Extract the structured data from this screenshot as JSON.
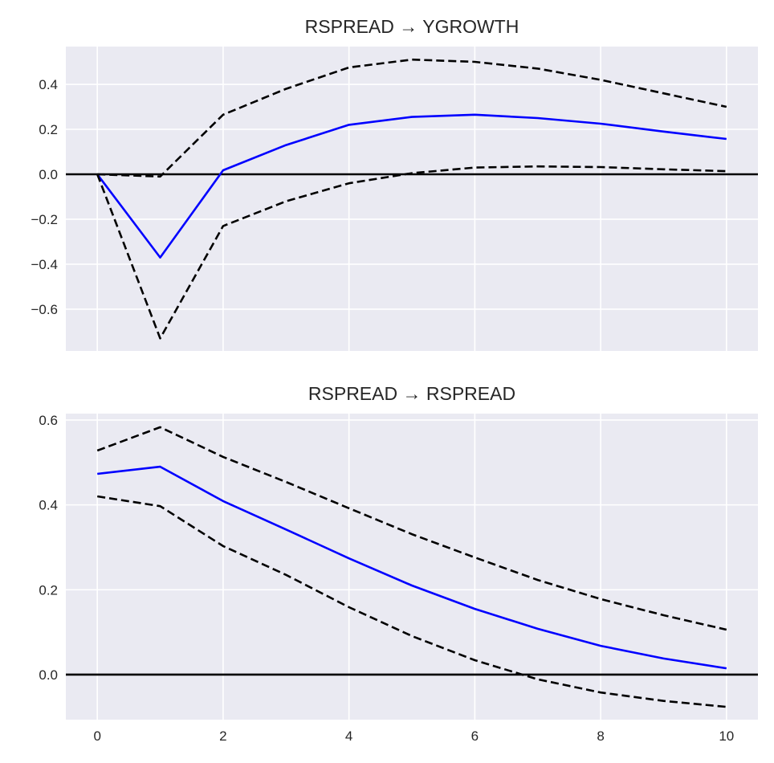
{
  "chart_data": [
    {
      "type": "line",
      "title": "RSPREAD → YGROWTH",
      "xlabel": "",
      "ylabel": "",
      "x": [
        0,
        1,
        2,
        3,
        4,
        5,
        6,
        7,
        8,
        9,
        10
      ],
      "xlim": [
        -0.5,
        10.5
      ],
      "ylim": [
        -0.786,
        0.568
      ],
      "xticks": [
        0,
        2,
        4,
        6,
        8,
        10
      ],
      "xtick_labels_visible": false,
      "yticks": [
        -0.6,
        -0.4,
        -0.2,
        0.0,
        0.2,
        0.4
      ],
      "ytick_labels": [
        "−0.6",
        "−0.4",
        "−0.2",
        "0.0",
        "0.2",
        "0.4"
      ],
      "grid": true,
      "hline": 0,
      "series": [
        {
          "name": "irf",
          "style": "solid",
          "color": "#0000ff",
          "values": [
            0.0,
            -0.37,
            0.018,
            0.13,
            0.22,
            0.255,
            0.265,
            0.25,
            0.225,
            0.19,
            0.157
          ]
        },
        {
          "name": "upper",
          "style": "dashed",
          "color": "#000000",
          "values": [
            0.0,
            -0.01,
            0.265,
            0.38,
            0.475,
            0.51,
            0.5,
            0.47,
            0.42,
            0.36,
            0.3
          ]
        },
        {
          "name": "lower",
          "style": "dashed",
          "color": "#000000",
          "values": [
            0.0,
            -0.73,
            -0.23,
            -0.12,
            -0.04,
            0.005,
            0.03,
            0.035,
            0.032,
            0.022,
            0.014
          ]
        }
      ]
    },
    {
      "type": "line",
      "title": "RSPREAD → RSPREAD",
      "xlabel": "",
      "ylabel": "",
      "x": [
        0,
        1,
        2,
        3,
        4,
        5,
        6,
        7,
        8,
        9,
        10
      ],
      "xlim": [
        -0.5,
        10.5
      ],
      "ylim": [
        -0.106,
        0.615
      ],
      "xticks": [
        0,
        2,
        4,
        6,
        8,
        10
      ],
      "xtick_labels": [
        "0",
        "2",
        "4",
        "6",
        "8",
        "10"
      ],
      "xtick_labels_visible": true,
      "yticks": [
        0.0,
        0.2,
        0.4,
        0.6
      ],
      "ytick_labels": [
        "0.0",
        "0.2",
        "0.4",
        "0.6"
      ],
      "grid": true,
      "hline": 0,
      "series": [
        {
          "name": "irf",
          "style": "solid",
          "color": "#0000ff",
          "values": [
            0.473,
            0.49,
            0.409,
            0.342,
            0.274,
            0.21,
            0.155,
            0.108,
            0.068,
            0.038,
            0.015
          ]
        },
        {
          "name": "upper",
          "style": "dashed",
          "color": "#000000",
          "values": [
            0.528,
            0.583,
            0.513,
            0.454,
            0.392,
            0.331,
            0.276,
            0.223,
            0.178,
            0.14,
            0.106
          ]
        },
        {
          "name": "lower",
          "style": "dashed",
          "color": "#000000",
          "values": [
            0.42,
            0.397,
            0.303,
            0.235,
            0.159,
            0.091,
            0.034,
            -0.011,
            -0.042,
            -0.062,
            -0.076
          ]
        }
      ]
    }
  ],
  "colors": {
    "plot_bg": "#eaeaf2",
    "grid": "#ffffff"
  }
}
